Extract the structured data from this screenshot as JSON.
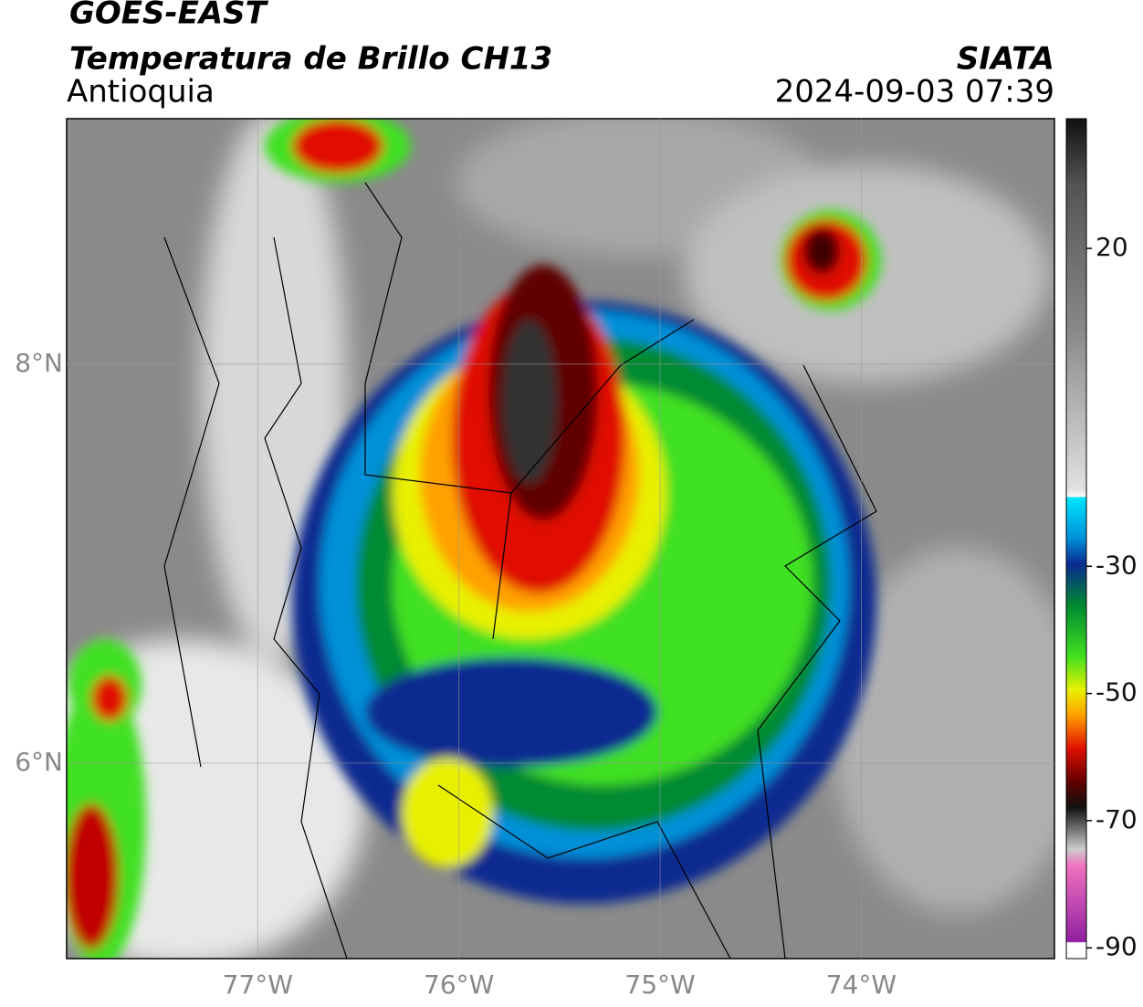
{
  "header": {
    "satellite": "GOES-EAST",
    "title": "Temperatura de Brillo CH13",
    "region": "Antioquia",
    "source": "SIATA",
    "datetime": "2024-09-03 07:39"
  },
  "map": {
    "lon_range": [
      -77.95,
      -73.04
    ],
    "lat_range": [
      5.02,
      9.23
    ],
    "lon_ticks": [
      {
        "value": -77,
        "label": "77°W"
      },
      {
        "value": -76,
        "label": "76°W"
      },
      {
        "value": -75,
        "label": "75°W"
      },
      {
        "value": -74,
        "label": "74°W"
      }
    ],
    "lat_ticks": [
      {
        "value": 8,
        "label": "8°N"
      },
      {
        "value": 6,
        "label": "6°N"
      }
    ],
    "grid": true
  },
  "colorbar": {
    "range": [
      -91.7,
      40.4
    ],
    "ticks": [
      20,
      -30,
      -50,
      -70,
      -90
    ]
  }
}
